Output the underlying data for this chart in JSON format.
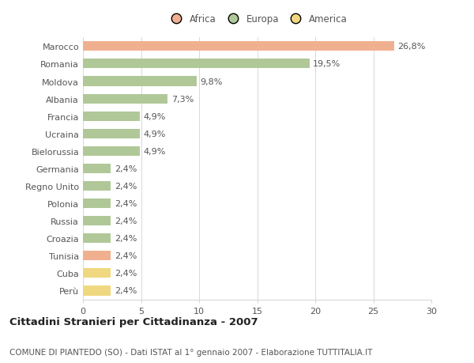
{
  "categories": [
    "Marocco",
    "Romania",
    "Moldova",
    "Albania",
    "Francia",
    "Ucraina",
    "Bielorussia",
    "Germania",
    "Regno Unito",
    "Polonia",
    "Russia",
    "Croazia",
    "Tunisia",
    "Cuba",
    "Perù"
  ],
  "values": [
    26.8,
    19.5,
    9.8,
    7.3,
    4.9,
    4.9,
    4.9,
    2.4,
    2.4,
    2.4,
    2.4,
    2.4,
    2.4,
    2.4,
    2.4
  ],
  "labels": [
    "26,8%",
    "19,5%",
    "9,8%",
    "7,3%",
    "4,9%",
    "4,9%",
    "4,9%",
    "2,4%",
    "2,4%",
    "2,4%",
    "2,4%",
    "2,4%",
    "2,4%",
    "2,4%",
    "2,4%"
  ],
  "colors": [
    "#f0b090",
    "#b0c898",
    "#b0c898",
    "#b0c898",
    "#b0c898",
    "#b0c898",
    "#b0c898",
    "#b0c898",
    "#b0c898",
    "#b0c898",
    "#b0c898",
    "#b0c898",
    "#f0b090",
    "#f0d880",
    "#f0d880"
  ],
  "legend_colors": {
    "Africa": "#f0b090",
    "Europa": "#b0c898",
    "America": "#f0d880"
  },
  "xlim": [
    0,
    30
  ],
  "xticks": [
    0,
    5,
    10,
    15,
    20,
    25,
    30
  ],
  "title": "Cittadini Stranieri per Cittadinanza - 2007",
  "subtitle": "COMUNE DI PIANTEDO (SO) - Dati ISTAT al 1° gennaio 2007 - Elaborazione TUTTITALIA.IT",
  "background_color": "#ffffff",
  "grid_color": "#d8d8d8",
  "bar_height": 0.55,
  "label_fontsize": 8,
  "tick_fontsize": 8,
  "title_fontsize": 9.5,
  "subtitle_fontsize": 7.5,
  "text_color": "#555555"
}
